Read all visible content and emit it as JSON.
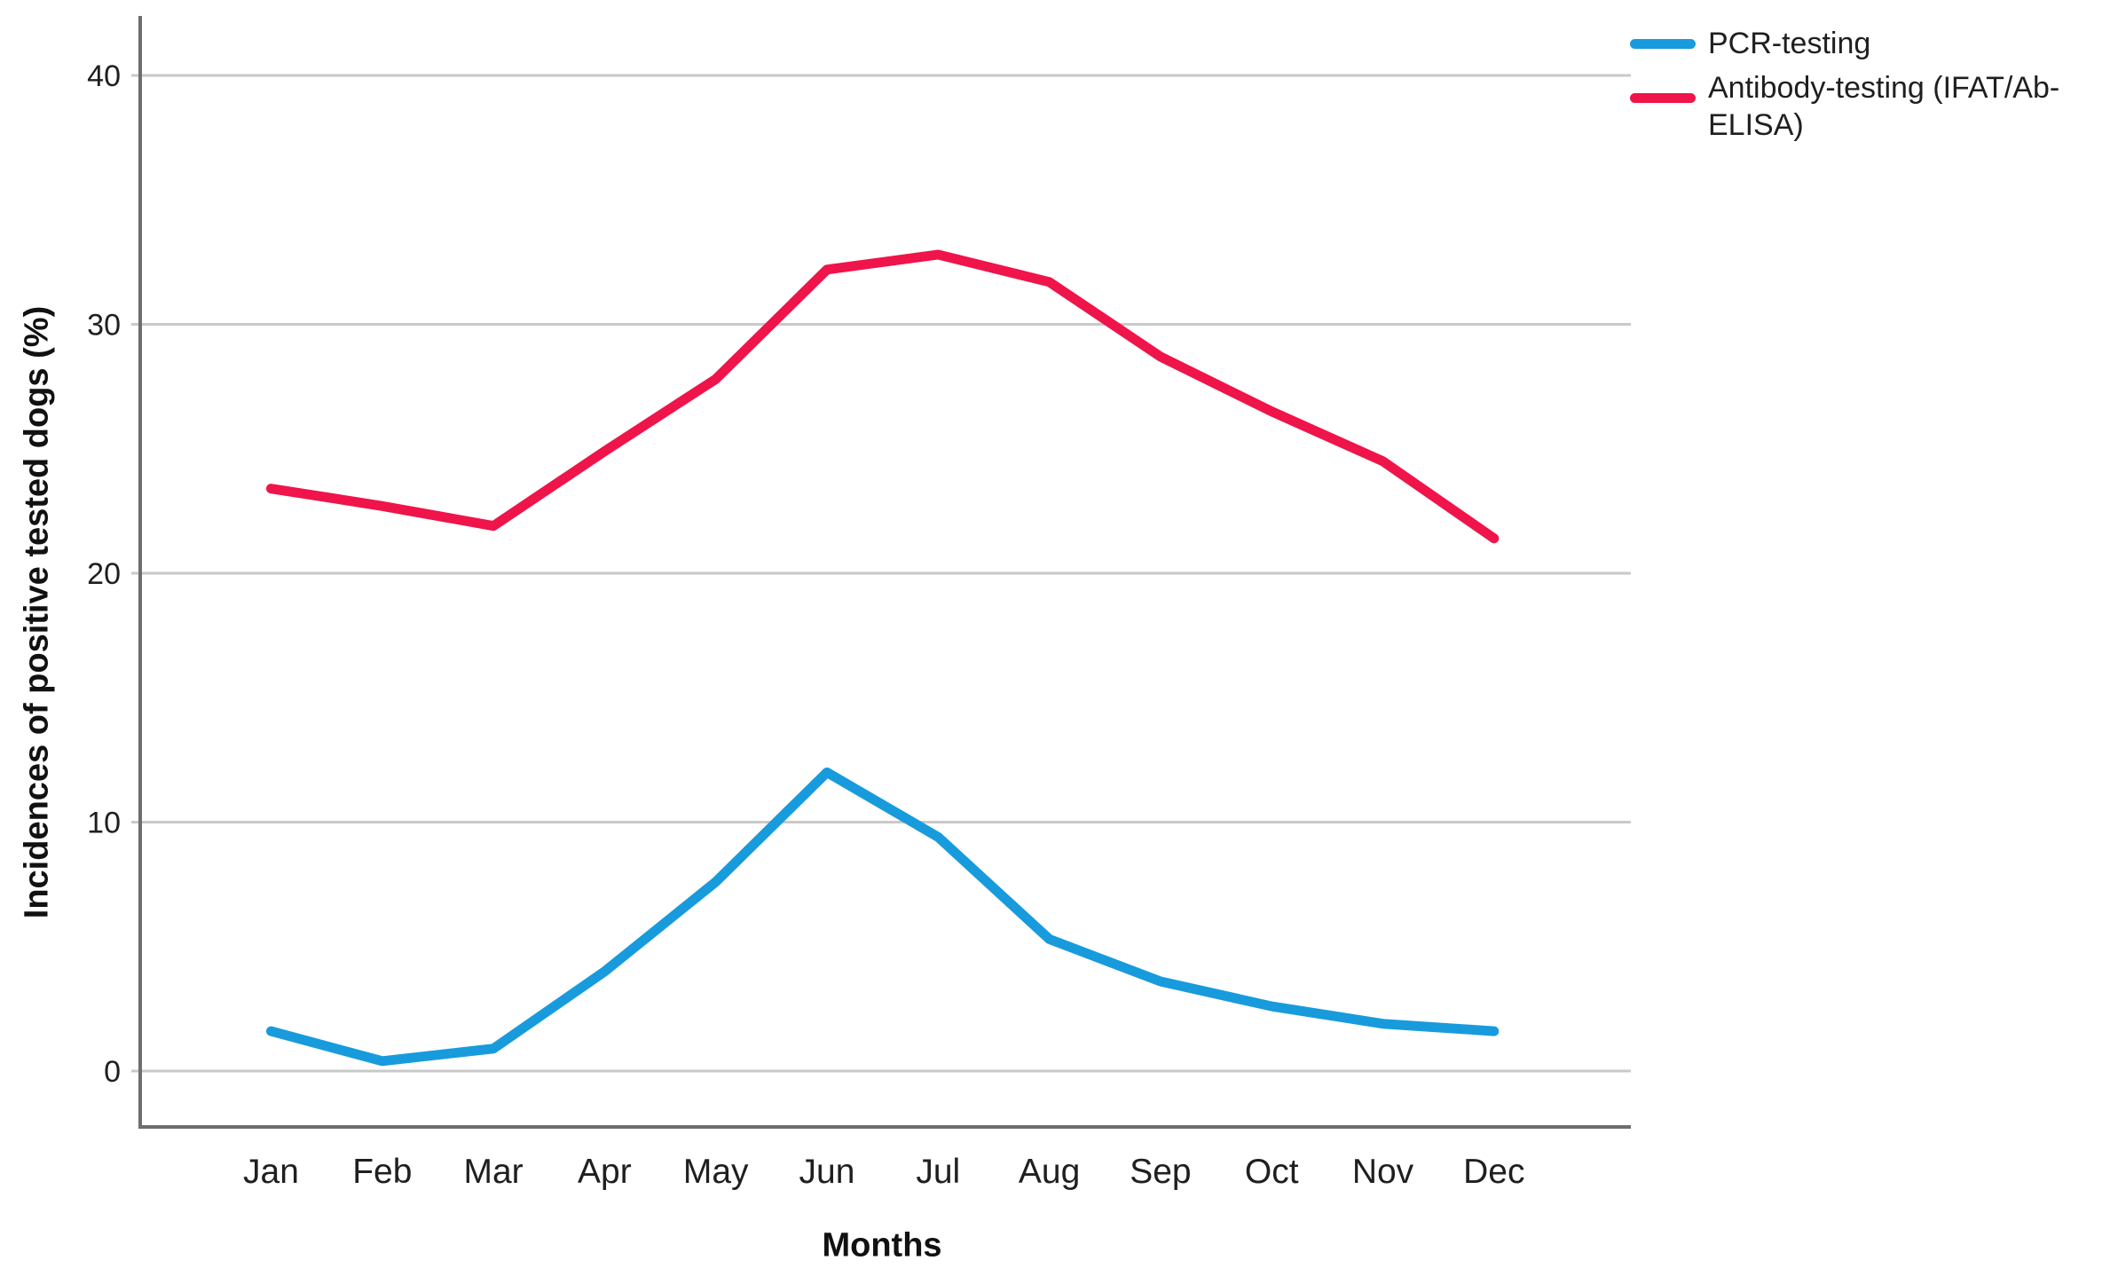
{
  "chart_data": {
    "type": "line",
    "title": "",
    "xlabel": "Months",
    "ylabel": "Incidences of positive tested dogs (%)",
    "categories": [
      "Jan",
      "Feb",
      "Mar",
      "Apr",
      "May",
      "Jun",
      "Jul",
      "Aug",
      "Sep",
      "Oct",
      "Nov",
      "Dec"
    ],
    "series": [
      {
        "name": "PCR-testing",
        "color": "#189BDC",
        "values": [
          1.6,
          0.4,
          0.9,
          4.0,
          7.6,
          12.0,
          9.4,
          5.3,
          3.6,
          2.6,
          1.9,
          1.6
        ]
      },
      {
        "name": "Antibody-testing (IFAT/Ab-ELISA)",
        "color": "#EF1449",
        "values": [
          23.4,
          22.7,
          21.9,
          24.9,
          27.8,
          32.2,
          32.8,
          31.7,
          28.7,
          26.5,
          24.5,
          21.4
        ]
      }
    ],
    "yticks": [
      0,
      10,
      20,
      30,
      40
    ],
    "ylim": [
      0,
      40
    ],
    "grid": "horizontal",
    "legend_position": "top-right",
    "colors": {
      "gridline": "#C9C9C9",
      "axis": "#6E6E6E",
      "tick_text": "#1f1f1f"
    }
  }
}
